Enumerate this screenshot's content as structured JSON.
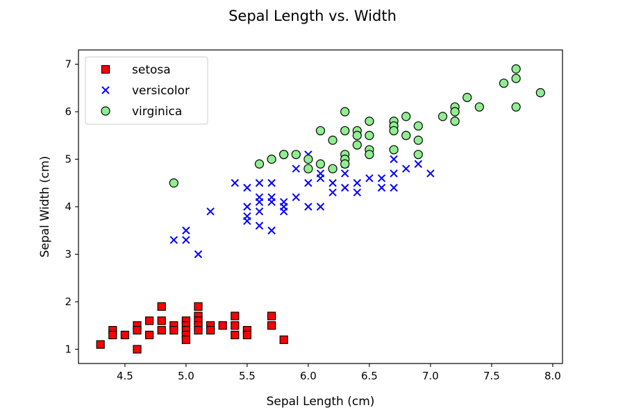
{
  "chart_data": {
    "type": "scatter",
    "title": "Sepal Length vs. Width",
    "xlabel": "Sepal Length (cm)",
    "ylabel": "Sepal Width (cm)",
    "xlim": [
      4.12,
      8.08
    ],
    "ylim": [
      0.7,
      7.3
    ],
    "xticks": [
      4.5,
      5.0,
      5.5,
      6.0,
      6.5,
      7.0,
      7.5,
      8.0
    ],
    "xtick_labels": [
      "4.5",
      "5.0",
      "5.5",
      "6.0",
      "6.5",
      "7.0",
      "7.5",
      "8.0"
    ],
    "yticks": [
      1,
      2,
      3,
      4,
      5,
      6,
      7
    ],
    "ytick_labels": [
      "1",
      "2",
      "3",
      "4",
      "5",
      "6",
      "7"
    ],
    "grid": false,
    "legend_position": "top-left",
    "series": [
      {
        "name": "setosa",
        "marker": "square",
        "color": "#ff0000",
        "edgecolor": "#000000",
        "points": [
          [
            4.3,
            1.1
          ],
          [
            4.4,
            1.4
          ],
          [
            4.4,
            1.3
          ],
          [
            4.5,
            1.3
          ],
          [
            4.6,
            1.5
          ],
          [
            4.6,
            1.4
          ],
          [
            4.6,
            1.0
          ],
          [
            4.7,
            1.6
          ],
          [
            4.7,
            1.3
          ],
          [
            4.8,
            1.9
          ],
          [
            4.8,
            1.6
          ],
          [
            4.8,
            1.4
          ],
          [
            4.9,
            1.5
          ],
          [
            4.9,
            1.4
          ],
          [
            5.0,
            1.6
          ],
          [
            5.0,
            1.5
          ],
          [
            5.0,
            1.4
          ],
          [
            5.0,
            1.3
          ],
          [
            5.0,
            1.2
          ],
          [
            5.1,
            1.9
          ],
          [
            5.1,
            1.7
          ],
          [
            5.1,
            1.6
          ],
          [
            5.1,
            1.5
          ],
          [
            5.1,
            1.4
          ],
          [
            5.2,
            1.5
          ],
          [
            5.2,
            1.4
          ],
          [
            5.3,
            1.5
          ],
          [
            5.4,
            1.7
          ],
          [
            5.4,
            1.5
          ],
          [
            5.4,
            1.3
          ],
          [
            5.5,
            1.4
          ],
          [
            5.5,
            1.3
          ],
          [
            5.7,
            1.7
          ],
          [
            5.7,
            1.5
          ],
          [
            5.8,
            1.2
          ]
        ]
      },
      {
        "name": "versicolor",
        "marker": "x",
        "color": "#0000ff",
        "points": [
          [
            4.9,
            3.3
          ],
          [
            5.0,
            3.5
          ],
          [
            5.0,
            3.3
          ],
          [
            5.1,
            3.0
          ],
          [
            5.2,
            3.9
          ],
          [
            5.4,
            4.5
          ],
          [
            5.5,
            4.4
          ],
          [
            5.5,
            4.0
          ],
          [
            5.5,
            3.8
          ],
          [
            5.5,
            3.7
          ],
          [
            5.6,
            4.5
          ],
          [
            5.6,
            4.2
          ],
          [
            5.6,
            4.1
          ],
          [
            5.6,
            3.9
          ],
          [
            5.6,
            3.6
          ],
          [
            5.7,
            4.5
          ],
          [
            5.7,
            4.2
          ],
          [
            5.7,
            4.1
          ],
          [
            5.7,
            3.5
          ],
          [
            5.8,
            4.1
          ],
          [
            5.8,
            4.0
          ],
          [
            5.8,
            3.9
          ],
          [
            5.9,
            4.8
          ],
          [
            5.9,
            4.2
          ],
          [
            6.0,
            5.1
          ],
          [
            6.0,
            4.5
          ],
          [
            6.0,
            4.0
          ],
          [
            6.1,
            4.7
          ],
          [
            6.1,
            4.6
          ],
          [
            6.1,
            4.0
          ],
          [
            6.2,
            4.5
          ],
          [
            6.2,
            4.3
          ],
          [
            6.3,
            4.9
          ],
          [
            6.3,
            4.7
          ],
          [
            6.3,
            4.4
          ],
          [
            6.4,
            4.5
          ],
          [
            6.4,
            4.3
          ],
          [
            6.5,
            4.6
          ],
          [
            6.6,
            4.6
          ],
          [
            6.6,
            4.4
          ],
          [
            6.7,
            5.0
          ],
          [
            6.7,
            4.7
          ],
          [
            6.7,
            4.4
          ],
          [
            6.8,
            4.8
          ],
          [
            6.9,
            4.9
          ],
          [
            7.0,
            4.7
          ]
        ]
      },
      {
        "name": "virginica",
        "marker": "circle",
        "color": "#90ee90",
        "edgecolor": "#000000",
        "points": [
          [
            4.9,
            4.5
          ],
          [
            5.6,
            4.9
          ],
          [
            5.7,
            5.0
          ],
          [
            5.8,
            5.1
          ],
          [
            5.8,
            5.1
          ],
          [
            5.9,
            5.1
          ],
          [
            6.0,
            5.0
          ],
          [
            6.0,
            4.8
          ],
          [
            6.1,
            5.6
          ],
          [
            6.1,
            4.9
          ],
          [
            6.2,
            5.4
          ],
          [
            6.2,
            4.8
          ],
          [
            6.3,
            6.0
          ],
          [
            6.3,
            5.6
          ],
          [
            6.3,
            5.1
          ],
          [
            6.3,
            5.0
          ],
          [
            6.3,
            4.9
          ],
          [
            6.4,
            5.6
          ],
          [
            6.4,
            5.5
          ],
          [
            6.4,
            5.3
          ],
          [
            6.5,
            5.8
          ],
          [
            6.5,
            5.5
          ],
          [
            6.5,
            5.2
          ],
          [
            6.5,
            5.1
          ],
          [
            6.7,
            5.8
          ],
          [
            6.7,
            5.7
          ],
          [
            6.7,
            5.6
          ],
          [
            6.7,
            5.2
          ],
          [
            6.8,
            5.9
          ],
          [
            6.8,
            5.5
          ],
          [
            6.9,
            5.7
          ],
          [
            6.9,
            5.4
          ],
          [
            6.9,
            5.1
          ],
          [
            7.1,
            5.9
          ],
          [
            7.2,
            6.1
          ],
          [
            7.2,
            6.0
          ],
          [
            7.2,
            5.8
          ],
          [
            7.3,
            6.3
          ],
          [
            7.4,
            6.1
          ],
          [
            7.6,
            6.6
          ],
          [
            7.7,
            6.9
          ],
          [
            7.7,
            6.7
          ],
          [
            7.7,
            6.1
          ],
          [
            7.9,
            6.4
          ]
        ]
      }
    ]
  }
}
